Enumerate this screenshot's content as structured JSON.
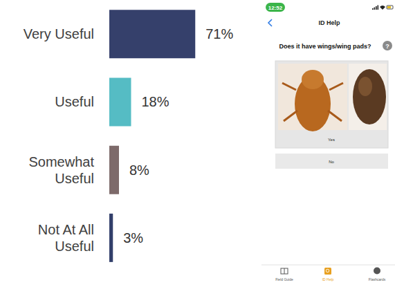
{
  "chart_data": {
    "type": "bar",
    "orientation": "horizontal",
    "categories": [
      "Very Useful",
      "Useful",
      "Somewhat Useful",
      "Not At All Useful"
    ],
    "values": [
      71,
      18,
      8,
      3
    ],
    "value_labels": [
      "71%",
      "18%",
      "8%",
      "3%"
    ],
    "colors": [
      "#35406b",
      "#55bcc4",
      "#7d6a6a",
      "#33406b"
    ],
    "xlim": [
      0,
      100
    ],
    "data_labels": true,
    "tick_labels": false,
    "grid": false
  },
  "screenshot": {
    "status_bar": {
      "time": "12:52"
    },
    "header": {
      "title": "ID Help",
      "help": "?"
    },
    "question": "Does it have wings/wing pads?",
    "options": [
      "Yes",
      "No"
    ],
    "tabs": [
      "Field Guide",
      "ID Help",
      "Flashcards"
    ],
    "active_tab": "ID Help"
  }
}
